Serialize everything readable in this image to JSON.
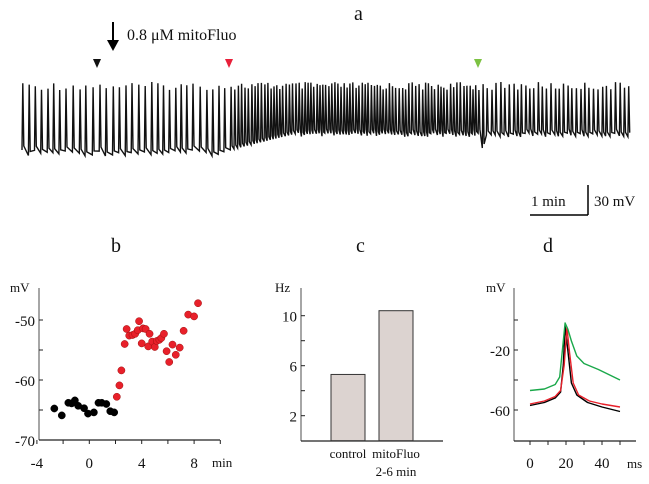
{
  "chart_data": [
    {
      "panel": "a",
      "type": "line",
      "annotation": "0.8 μM mitoFluo",
      "markers_colors": {
        "black": "#111111",
        "red": "#e8203a",
        "green": "#7cc242"
      },
      "scale_bar": {
        "time": "1 min",
        "voltage": "30 mV"
      }
    },
    {
      "panel": "b",
      "type": "scatter",
      "ylabel": "mV",
      "xlabel": "min",
      "xlim": [
        -4,
        10
      ],
      "ylim": [
        -70,
        -45
      ],
      "xticks": [
        -4,
        0,
        4,
        8
      ],
      "yticks": [
        -50,
        -60,
        -70
      ],
      "series": [
        {
          "color": "#000000",
          "points": [
            [
              -2.67,
              -64.75
            ],
            [
              -2.1,
              -65.9
            ],
            [
              -1.6,
              -63.8
            ],
            [
              -1.35,
              -63.9
            ],
            [
              -1.1,
              -63.4
            ],
            [
              -0.85,
              -64.3
            ],
            [
              -0.4,
              -64.7
            ],
            [
              -0.1,
              -65.6
            ],
            [
              0.35,
              -65.4
            ],
            [
              0.7,
              -63.8
            ],
            [
              0.95,
              -63.8
            ],
            [
              1.3,
              -64.0
            ],
            [
              1.6,
              -65.2
            ],
            [
              1.9,
              -65.4
            ]
          ]
        },
        {
          "color": "#e8202a",
          "points": [
            [
              2.1,
              -62.8
            ],
            [
              2.3,
              -60.9
            ],
            [
              2.45,
              -58.4
            ],
            [
              2.7,
              -54.0
            ],
            [
              2.85,
              -51.5
            ],
            [
              3.05,
              -52.6
            ],
            [
              3.3,
              -52.5
            ],
            [
              3.5,
              -52.3
            ],
            [
              3.7,
              -51.7
            ],
            [
              3.8,
              -50.2
            ],
            [
              4.0,
              -53.9
            ],
            [
              4.1,
              -51.4
            ],
            [
              4.3,
              -51.5
            ],
            [
              4.5,
              -54.4
            ],
            [
              4.6,
              -52.3
            ],
            [
              4.8,
              -53.6
            ],
            [
              5.0,
              -54.5
            ],
            [
              5.15,
              -53.5
            ],
            [
              5.35,
              -53.3
            ],
            [
              5.5,
              -53.0
            ],
            [
              5.7,
              -52.3
            ],
            [
              5.9,
              -55.2
            ],
            [
              6.1,
              -57.0
            ],
            [
              6.35,
              -54.1
            ],
            [
              6.6,
              -55.8
            ],
            [
              6.9,
              -54.6
            ],
            [
              7.2,
              -51.8
            ],
            [
              7.55,
              -49.1
            ],
            [
              8.0,
              -49.4
            ],
            [
              8.3,
              -47.2
            ]
          ]
        }
      ]
    },
    {
      "panel": "c",
      "type": "bar",
      "ylabel": "Hz",
      "categories": [
        "control",
        "mitoFluo"
      ],
      "category_sublabels": [
        "",
        "2-6 min"
      ],
      "values": [
        5.3,
        10.4
      ],
      "ylim": [
        0,
        12
      ],
      "yticks": [
        2,
        6,
        10
      ],
      "bar_color": "#dcd3d0"
    },
    {
      "panel": "d",
      "type": "line",
      "ylabel": "mV",
      "xlabel": "ms",
      "xlim": [
        -10,
        60
      ],
      "ylim": [
        -80,
        0
      ],
      "xticks": [
        0,
        20,
        40
      ],
      "yticks": [
        -20,
        -60
      ],
      "series": [
        {
          "color": "#000000",
          "points": [
            [
              0,
              -57
            ],
            [
              8,
              -55
            ],
            [
              14,
              -52
            ],
            [
              17,
              -48
            ],
            [
              18.5,
              -30
            ],
            [
              19.5,
              -4
            ],
            [
              21,
              -20
            ],
            [
              23,
              -42
            ],
            [
              26,
              -50
            ],
            [
              32,
              -55
            ],
            [
              40,
              -58
            ],
            [
              50,
              -61
            ]
          ]
        },
        {
          "color": "#e8202a",
          "points": [
            [
              0,
              -56
            ],
            [
              8,
              -54
            ],
            [
              14,
              -51
            ],
            [
              17,
              -47
            ],
            [
              19,
              -30
            ],
            [
              20.5,
              -5
            ],
            [
              22,
              -22
            ],
            [
              24,
              -42
            ],
            [
              27,
              -50
            ],
            [
              33,
              -54
            ],
            [
              40,
              -56
            ],
            [
              50,
              -58
            ]
          ]
        },
        {
          "color": "#1aa84a",
          "points": [
            [
              0,
              -47
            ],
            [
              8,
              -46
            ],
            [
              14,
              -43
            ],
            [
              16.5,
              -38
            ],
            [
              18,
              -20
            ],
            [
              19.5,
              -2
            ],
            [
              21,
              -6
            ],
            [
              23,
              -14
            ],
            [
              26,
              -24
            ],
            [
              30,
              -29
            ],
            [
              38,
              -33
            ],
            [
              50,
              -40
            ]
          ]
        }
      ]
    }
  ],
  "panel_labels": {
    "a": "a",
    "b": "b",
    "c": "c",
    "d": "d"
  }
}
